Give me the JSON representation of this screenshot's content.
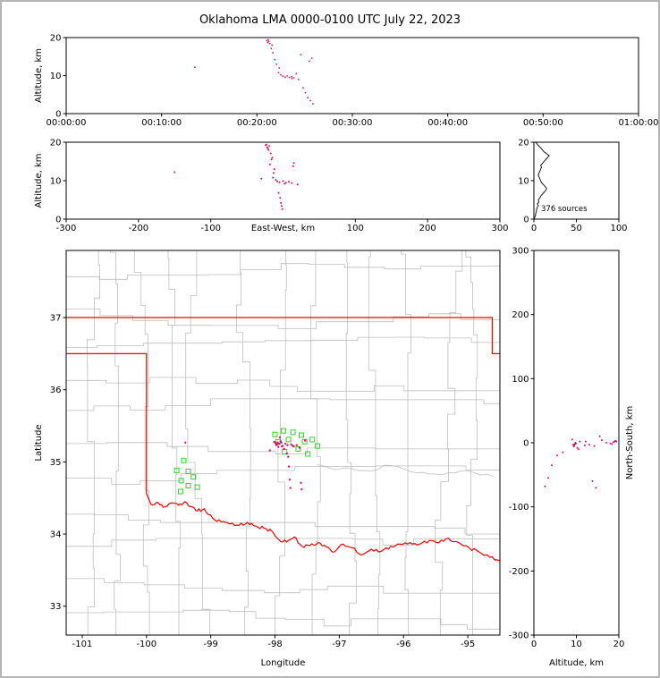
{
  "title": "Oklahoma LMA 0000-0100 UTC July 22, 2023",
  "chart_data": {
    "type": "scatter",
    "title": "Oklahoma LMA 0000-0100 UTC July 22, 2023",
    "colors": {
      "source": "#cc1166",
      "station": "#33cc33",
      "state_border": "#ee0000",
      "county": "#bdbdbd",
      "histogram": "#000000",
      "axis": "#000000"
    },
    "panels": {
      "time_altitude": {
        "ylabel": "Altitude, km",
        "y_ticks": [
          0,
          10,
          20
        ],
        "y_range_km": [
          0,
          20
        ],
        "x_ticks": [
          "00:00:00",
          "00:10:00",
          "00:20:00",
          "00:30:00",
          "00:40:00",
          "00:50:00",
          "01:00:00"
        ],
        "x_range_s": [
          0,
          3600
        ]
      },
      "ew_altitude": {
        "xlabel": "East-West, km",
        "ylabel": "Altitude, km",
        "x_ticks": [
          -300,
          -200,
          -100,
          100,
          200,
          300
        ],
        "y_ticks": [
          0,
          10,
          20
        ],
        "x_range_km": [
          -300,
          300
        ],
        "y_range_km": [
          0,
          20
        ]
      },
      "alt_histogram": {
        "x_ticks": [
          0,
          50,
          100
        ],
        "y_ticks": [
          0,
          10,
          20
        ],
        "x_range": [
          0,
          100
        ],
        "y_range_km": [
          0,
          20
        ],
        "annotation": "376 sources"
      },
      "map": {
        "xlabel": "Longitude",
        "ylabel": "Latitude",
        "x_ticks": [
          -101,
          -100,
          -99,
          -98,
          -97,
          -96,
          -95
        ],
        "y_ticks": [
          33,
          34,
          35,
          36,
          37
        ],
        "lon_range": [
          -101.25,
          -94.5
        ],
        "lat_range": [
          32.6,
          37.93
        ]
      },
      "ns_altitude": {
        "xlabel": "Altitude, km",
        "ylabel": "North-South, km",
        "x_ticks": [
          0,
          10,
          20
        ],
        "y_ticks": [
          300,
          200,
          100,
          0,
          -100,
          -200,
          -300
        ],
        "x_range_km": [
          0,
          20
        ],
        "y_range_km": [
          -300,
          300
        ]
      }
    },
    "network_center": {
      "lon": -97.75,
      "lat": 35.25
    },
    "km_per_deg_lon": 91.2,
    "km_per_deg_lat": 111.0,
    "sources": {
      "fields": [
        "time_s",
        "east_west_km",
        "north_south_km",
        "altitude_km"
      ],
      "points": [
        [
          810,
          -150,
          2,
          12.2
        ],
        [
          1262,
          -24,
          3,
          19.2
        ],
        [
          1268,
          -22,
          1,
          18.7
        ],
        [
          1270,
          -23,
          2,
          19.4
        ],
        [
          1274,
          -19,
          2,
          19.0
        ],
        [
          1281,
          -21,
          -2,
          18.4
        ],
        [
          1290,
          -17,
          0,
          17.1
        ],
        [
          1295,
          -20,
          -1,
          18.0
        ],
        [
          1300,
          -15,
          4,
          16.0
        ],
        [
          1312,
          -18,
          -5,
          14.2
        ],
        [
          1324,
          -12,
          -3,
          13.0
        ],
        [
          1336,
          -14,
          2,
          10.8
        ],
        [
          1340,
          -13,
          -4,
          12.0
        ],
        [
          1350,
          -10,
          -8,
          10.2
        ],
        [
          1363,
          -8,
          0,
          9.8
        ],
        [
          1377,
          -5,
          -2,
          9.6
        ],
        [
          1390,
          0,
          -1,
          9.9
        ],
        [
          1404,
          4,
          -4,
          9.5
        ],
        [
          1418,
          8,
          -2,
          9.7
        ],
        [
          1420,
          2,
          -3,
          9.2
        ],
        [
          1432,
          12,
          -6,
          9.4
        ],
        [
          1447,
          -30,
          -10,
          10.5
        ],
        [
          1461,
          20,
          5,
          9.0
        ],
        [
          1476,
          -16,
          10,
          15.5
        ],
        [
          1490,
          -6,
          -15,
          6.8
        ],
        [
          1505,
          -4,
          -20,
          5.5
        ],
        [
          1520,
          -3,
          -35,
          4.2
        ],
        [
          1530,
          14,
          -60,
          13.8
        ],
        [
          1536,
          -2,
          -55,
          3.4
        ],
        [
          1545,
          15,
          -70,
          14.6
        ],
        [
          1552,
          -1,
          -68,
          2.6
        ]
      ]
    },
    "stations_lonlat": [
      [
        -99.42,
        35.02
      ],
      [
        -99.53,
        34.88
      ],
      [
        -99.35,
        34.87
      ],
      [
        -99.27,
        34.79
      ],
      [
        -99.46,
        34.74
      ],
      [
        -99.35,
        34.67
      ],
      [
        -99.21,
        34.65
      ],
      [
        -99.47,
        34.59
      ],
      [
        -98.0,
        35.38
      ],
      [
        -97.87,
        35.43
      ],
      [
        -97.72,
        35.41
      ],
      [
        -97.59,
        35.37
      ],
      [
        -97.95,
        35.28
      ],
      [
        -97.79,
        35.31
      ],
      [
        -97.54,
        35.28
      ],
      [
        -97.42,
        35.31
      ],
      [
        -97.34,
        35.22
      ],
      [
        -97.64,
        35.18
      ],
      [
        -97.85,
        35.14
      ],
      [
        -97.49,
        35.11
      ]
    ],
    "altitude_histogram": {
      "alt_step_km": 0.5,
      "counts": [
        0,
        1,
        2,
        2,
        3,
        3,
        4,
        5,
        4,
        6,
        5,
        7,
        8,
        10,
        12,
        14,
        15,
        13,
        11,
        9,
        8,
        7,
        6,
        5,
        6,
        7,
        8,
        9,
        8,
        10,
        12,
        14,
        16,
        18,
        15,
        12,
        10,
        8,
        6,
        4,
        2
      ]
    },
    "state_border_lonlat": [
      [
        [
          -101.25,
          37.0
        ],
        [
          -94.62,
          37.0
        ],
        [
          -94.62,
          36.5
        ],
        [
          -94.43,
          36.5
        ]
      ],
      [
        [
          -101.25,
          36.5
        ],
        [
          -100.0,
          36.5
        ],
        [
          -100.0,
          34.56
        ],
        [
          -99.93,
          34.41
        ],
        [
          -99.84,
          34.44
        ],
        [
          -99.74,
          34.37
        ],
        [
          -99.62,
          34.43
        ],
        [
          -99.5,
          34.4
        ],
        [
          -99.4,
          34.45
        ],
        [
          -99.3,
          34.38
        ],
        [
          -99.21,
          34.32
        ],
        [
          -99.1,
          34.35
        ],
        [
          -98.97,
          34.22
        ],
        [
          -98.84,
          34.17
        ],
        [
          -98.7,
          34.14
        ],
        [
          -98.56,
          34.12
        ],
        [
          -98.43,
          34.16
        ],
        [
          -98.3,
          34.11
        ],
        [
          -98.17,
          34.08
        ],
        [
          -98.05,
          34.04
        ],
        [
          -97.94,
          33.92
        ],
        [
          -97.82,
          33.89
        ],
        [
          -97.7,
          33.96
        ],
        [
          -97.58,
          33.83
        ],
        [
          -97.46,
          33.84
        ],
        [
          -97.33,
          33.88
        ],
        [
          -97.2,
          33.82
        ],
        [
          -97.08,
          33.75
        ],
        [
          -96.94,
          33.86
        ],
        [
          -96.8,
          33.81
        ],
        [
          -96.65,
          33.71
        ],
        [
          -96.5,
          33.79
        ],
        [
          -96.35,
          33.76
        ],
        [
          -96.2,
          33.83
        ],
        [
          -96.05,
          33.86
        ],
        [
          -95.9,
          33.88
        ],
        [
          -95.75,
          33.86
        ],
        [
          -95.6,
          33.91
        ],
        [
          -95.45,
          33.88
        ],
        [
          -95.3,
          33.94
        ],
        [
          -95.14,
          33.88
        ],
        [
          -94.98,
          33.81
        ],
        [
          -94.82,
          33.75
        ],
        [
          -94.66,
          33.68
        ],
        [
          -94.5,
          33.63
        ]
      ]
    ],
    "rivers_lonlat": [
      [
        [
          -97.35,
          34.96
        ],
        [
          -97.0,
          34.9
        ],
        [
          -96.6,
          34.88
        ],
        [
          -96.2,
          34.95
        ],
        [
          -95.8,
          34.85
        ],
        [
          -95.4,
          34.82
        ],
        [
          -95.0,
          34.88
        ],
        [
          -94.6,
          34.8
        ]
      ]
    ]
  }
}
